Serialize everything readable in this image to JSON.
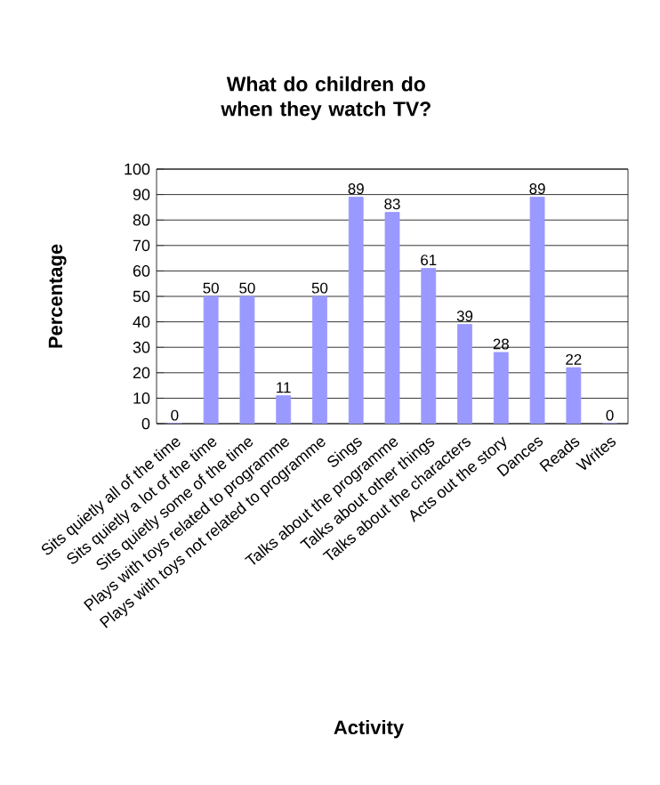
{
  "chart_data": {
    "type": "bar",
    "title": "What do children do when they watch TV?",
    "xlabel": "Activity",
    "ylabel": "Percentage",
    "categories": [
      "Sits quietly all of the time",
      "Sits quietly a lot of the time",
      "Sits quietly some of the time",
      "Plays with toys related to programme",
      "Plays with toys not related to programme",
      "Sings",
      "Talks about the programme",
      "Talks about other things",
      "Talks about the characters",
      "Acts out the story",
      "Dances",
      "Reads",
      "Writes"
    ],
    "values": [
      0,
      50,
      50,
      11,
      50,
      89,
      83,
      61,
      39,
      28,
      89,
      22,
      0
    ],
    "color": "#9999ff",
    "ylim": [
      0,
      100
    ],
    "yticks": [
      0,
      10,
      20,
      30,
      40,
      50,
      60,
      70,
      80,
      90,
      100
    ],
    "grid": "y",
    "data_labels": true
  }
}
